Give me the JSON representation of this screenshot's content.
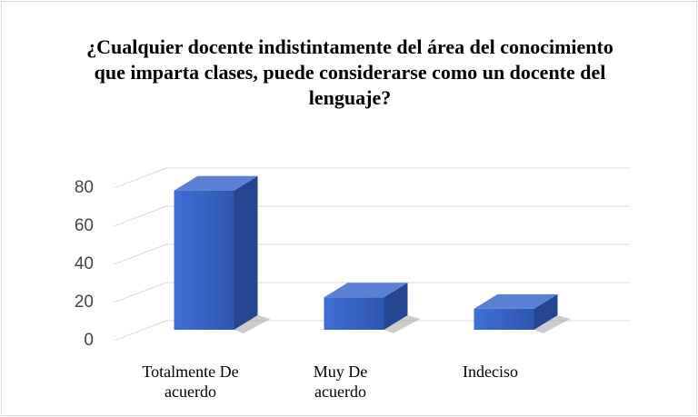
{
  "chart_data": {
    "type": "bar3d",
    "title": "¿Cualquier docente indistintamente del área del conocimiento que imparta clases, puede considerarse como un docente del lenguaje?",
    "categories": [
      "Totalmente De acuerdo",
      "Muy De acuerdo",
      "Indeciso"
    ],
    "values": [
      73,
      17,
      11
    ],
    "color": "#3a66c8",
    "ylim": [
      0,
      80
    ],
    "yticks": [
      0,
      20,
      40,
      60,
      80
    ],
    "grid": true
  }
}
